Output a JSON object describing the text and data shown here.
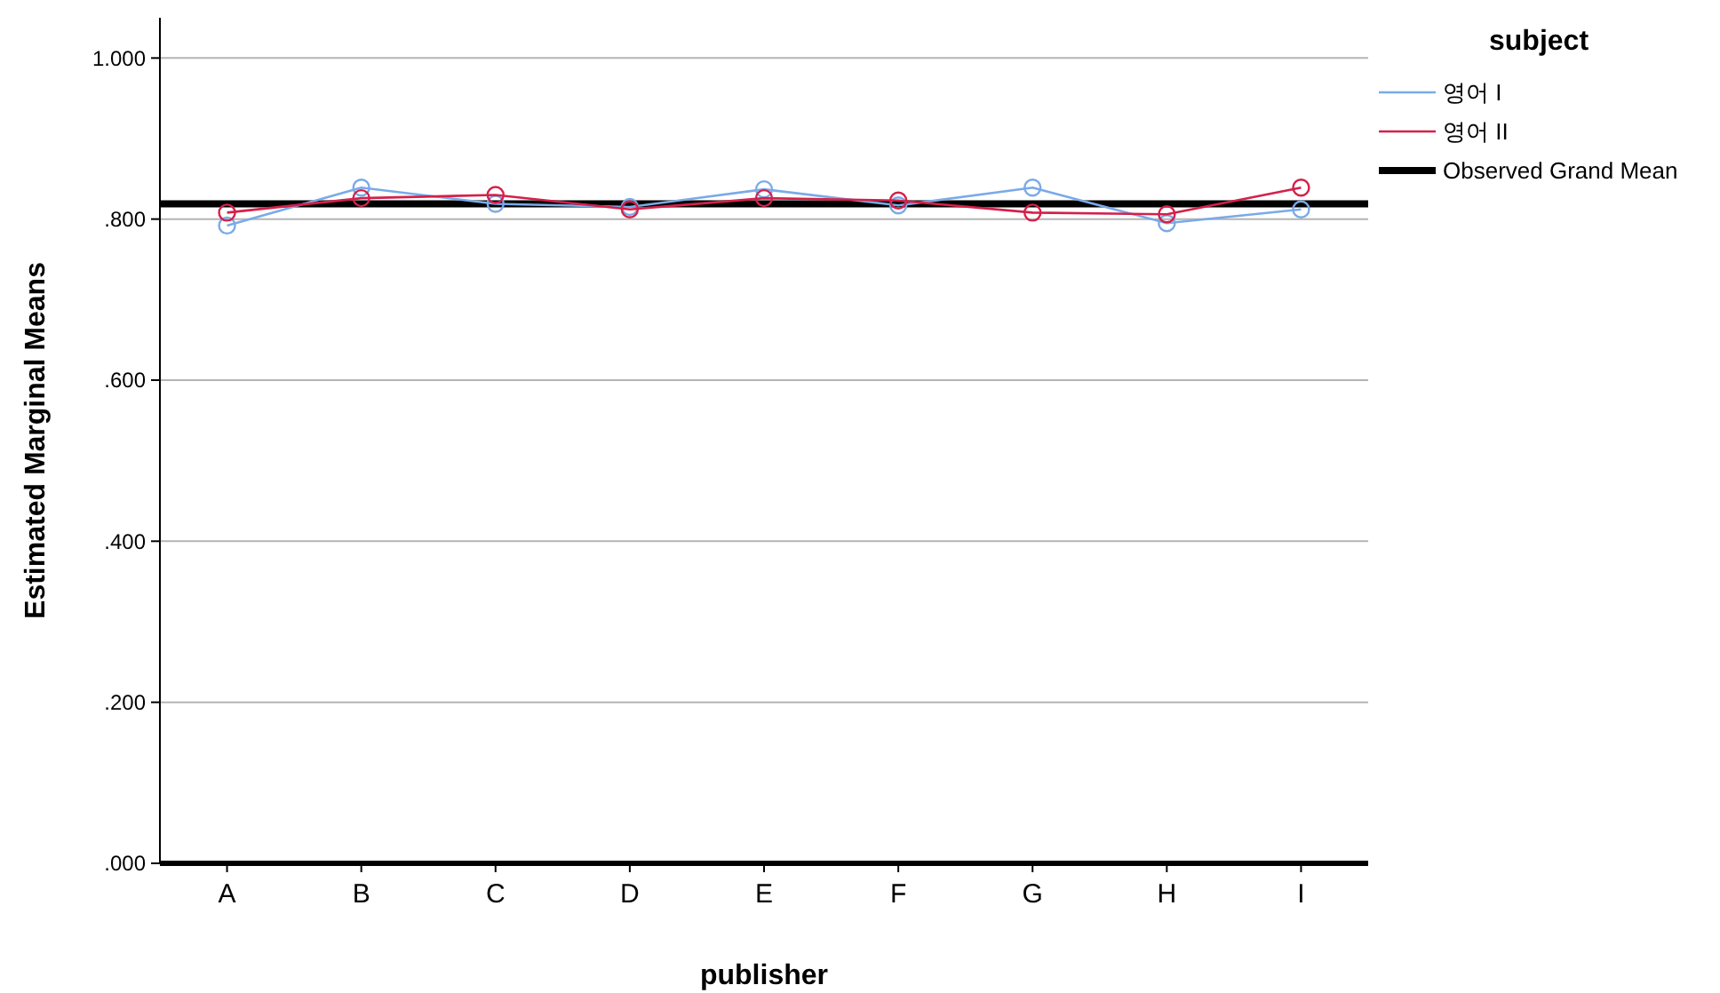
{
  "chart_data": {
    "type": "line",
    "xlabel": "publisher",
    "ylabel": "Estimated Marginal Means",
    "legend_title": "subject",
    "categories": [
      "A",
      "B",
      "C",
      "D",
      "E",
      "F",
      "G",
      "H",
      "I"
    ],
    "series": [
      {
        "name": "영어 I",
        "color": "#7aaae8",
        "values": [
          0.792,
          0.839,
          0.819,
          0.815,
          0.837,
          0.817,
          0.839,
          0.795,
          0.812
        ]
      },
      {
        "name": "영어 II",
        "color": "#d4204a",
        "values": [
          0.808,
          0.826,
          0.83,
          0.812,
          0.826,
          0.823,
          0.808,
          0.806,
          0.839
        ]
      }
    ],
    "ylim": [
      0,
      1.05
    ],
    "yticks": [
      {
        "value": 0,
        "label": ".000"
      },
      {
        "value": 0.2,
        "label": ".200"
      },
      {
        "value": 0.4,
        "label": ".400"
      },
      {
        "value": 0.6,
        "label": ".600"
      },
      {
        "value": 0.8,
        "label": ".800"
      },
      {
        "value": 1,
        "label": "1.000"
      }
    ],
    "ref_lines": [
      {
        "axis": "y",
        "value": 0.819,
        "label": "Observed Grand Mean",
        "color": "#000000"
      }
    ],
    "grid": "y",
    "legend": "top right",
    "marker": "circle",
    "line_style": "solid"
  }
}
